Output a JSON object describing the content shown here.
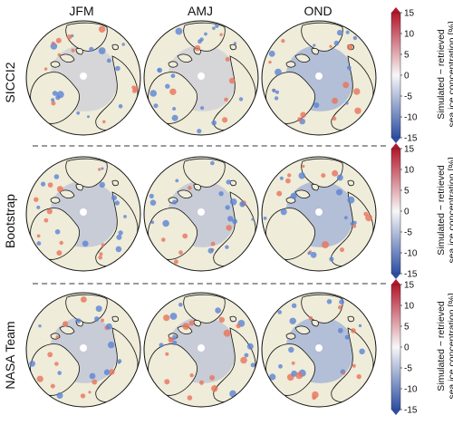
{
  "columns": [
    "JFM",
    "AMJ",
    "OND"
  ],
  "rows": [
    {
      "label": "SICCI2"
    },
    {
      "label": "Bootstrap"
    },
    {
      "label": "NASA Team"
    }
  ],
  "colorbar": {
    "label_line1": "Simulated − retrieved",
    "label_line2": "sea ice concentration [%]",
    "ticks": [
      "15",
      "10",
      "5",
      "0",
      "-5",
      "-10",
      "-15"
    ],
    "min": -15,
    "max": 15,
    "colors": {
      "high": "#b2182b",
      "mid": "#f7f7f7",
      "low": "#2c4ea3"
    }
  },
  "map_colors": {
    "land": "#efecd9",
    "sea_ice": "#d6d6d8",
    "difference_positive": "#e9735a",
    "difference_negative": "#5b83d4"
  }
}
